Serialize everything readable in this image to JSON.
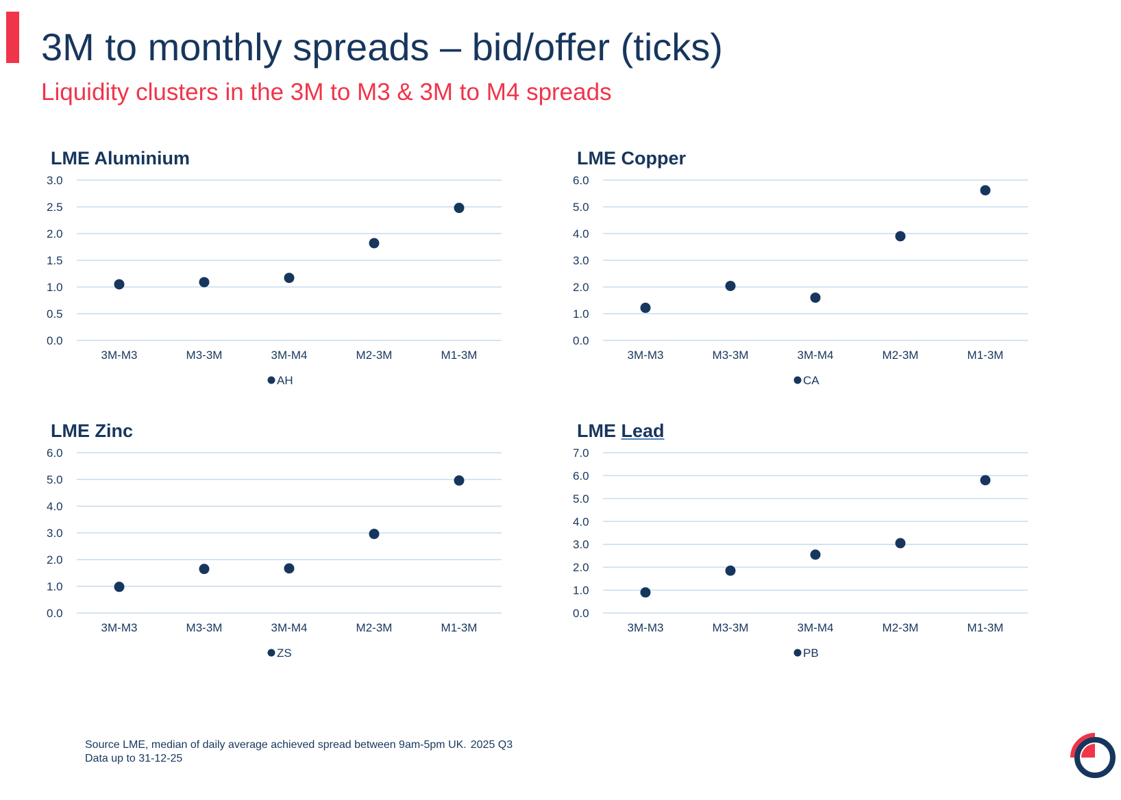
{
  "header": {
    "title": "3M to monthly spreads – bid/offer (ticks)",
    "subtitle": "Liquidity clusters in the 3M to M3 & 3M to M4 spreads"
  },
  "chart_data": [
    {
      "type": "scatter",
      "title": "LME Aluminium",
      "categories": [
        "3M-M3",
        "M3-3M",
        "3M-M4",
        "M2-3M",
        "M1-3M"
      ],
      "series": [
        {
          "name": "AH",
          "values": [
            1.05,
            1.09,
            1.17,
            1.82,
            2.48
          ]
        }
      ],
      "ylim": [
        0,
        3.0
      ],
      "yticks": [
        "0.0",
        "0.5",
        "1.0",
        "1.5",
        "2.0",
        "2.5",
        "3.0"
      ],
      "grid": true,
      "legend": "bottom",
      "color": "#17365d"
    },
    {
      "type": "scatter",
      "title": "LME Copper",
      "categories": [
        "3M-M3",
        "M3-3M",
        "3M-M4",
        "M2-3M",
        "M1-3M"
      ],
      "series": [
        {
          "name": "CA",
          "values": [
            1.22,
            2.04,
            1.6,
            3.9,
            5.62
          ]
        }
      ],
      "ylim": [
        0,
        6.0
      ],
      "yticks": [
        "0.0",
        "1.0",
        "2.0",
        "3.0",
        "4.0",
        "5.0",
        "6.0"
      ],
      "grid": true,
      "legend": "bottom",
      "color": "#17365d"
    },
    {
      "type": "scatter",
      "title": "LME Zinc",
      "categories": [
        "3M-M3",
        "M3-3M",
        "3M-M4",
        "M2-3M",
        "M1-3M"
      ],
      "series": [
        {
          "name": "ZS",
          "values": [
            0.98,
            1.65,
            1.67,
            2.96,
            4.96
          ]
        }
      ],
      "ylim": [
        0,
        6.0
      ],
      "yticks": [
        "0.0",
        "1.0",
        "2.0",
        "3.0",
        "4.0",
        "5.0",
        "6.0"
      ],
      "grid": true,
      "legend": "bottom",
      "color": "#17365d"
    },
    {
      "type": "scatter",
      "title_prefix": "LME",
      "title_emphasis": "Lead",
      "categories": [
        "3M-M3",
        "M3-3M",
        "3M-M4",
        "M2-3M",
        "M1-3M"
      ],
      "series": [
        {
          "name": "PB",
          "values": [
            0.9,
            1.85,
            2.55,
            3.05,
            5.8
          ]
        }
      ],
      "ylim": [
        0,
        7.0
      ],
      "yticks": [
        "0.0",
        "1.0",
        "2.0",
        "3.0",
        "4.0",
        "5.0",
        "6.0",
        "7.0"
      ],
      "grid": true,
      "legend": "bottom",
      "color": "#17365d"
    }
  ],
  "footer": {
    "source": "Source LME, median of daily average achieved spread between 9am-5pm UK.",
    "period": "2025 Q3",
    "data_up_to": "Data up to 31-12-25"
  },
  "colors": {
    "accent": "#f0344a",
    "navy": "#17365d",
    "gridline": "#c6dcef"
  },
  "logo": {
    "icon": "lme-logo-icon"
  }
}
